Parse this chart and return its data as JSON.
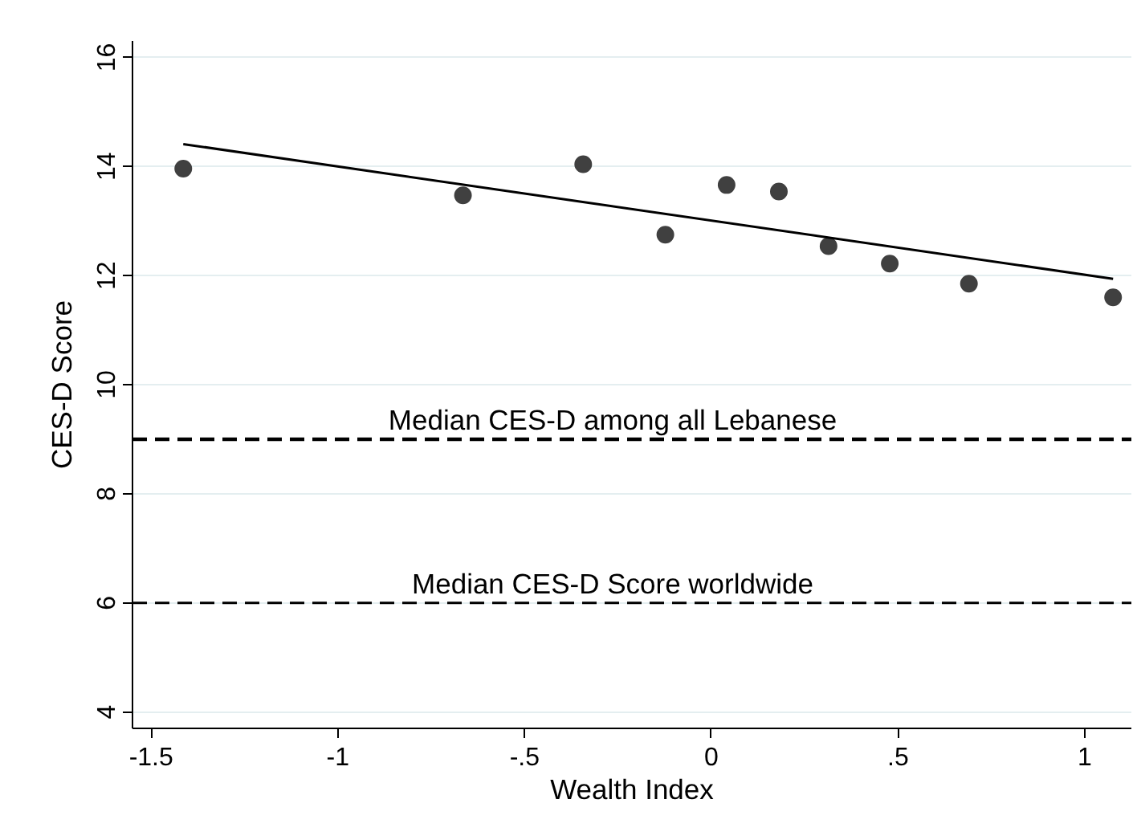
{
  "chart_data": {
    "type": "scatter",
    "xlabel": "Wealth Index",
    "ylabel": "CES-D Score",
    "xlim": [
      -1.55,
      1.125
    ],
    "ylim": [
      3.7,
      16.3
    ],
    "xticks": [
      -1.5,
      -1,
      {
        "value": -0.5,
        "label": "-.5"
      },
      0,
      {
        "value": 0.5,
        "label": ".5"
      },
      1
    ],
    "yticks": [
      4,
      6,
      8,
      10,
      12,
      14,
      16
    ],
    "grid": "y",
    "series": [
      {
        "color": "#404040",
        "marker": "circle",
        "x": [
          -1.414,
          -0.665,
          -0.343,
          -0.123,
          0.041,
          0.181,
          0.314,
          0.478,
          0.69,
          1.076
        ],
        "values": [
          13.96,
          13.47,
          14.04,
          12.75,
          13.66,
          13.54,
          12.54,
          12.22,
          11.85,
          11.6
        ]
      },
      {
        "type": "line",
        "color": "#000000",
        "x": [
          -1.414,
          1.076
        ],
        "values": [
          14.41,
          11.94
        ]
      }
    ],
    "ref_lines": [
      {
        "axis": "y",
        "value": 9,
        "label": "Median CES-D among all Lebanese",
        "color": "#000000",
        "line_style": "dashed"
      },
      {
        "axis": "y",
        "value": 6,
        "label": "Median CES-D Score worldwide",
        "color": "#000000",
        "line_style": "dashed"
      }
    ]
  }
}
